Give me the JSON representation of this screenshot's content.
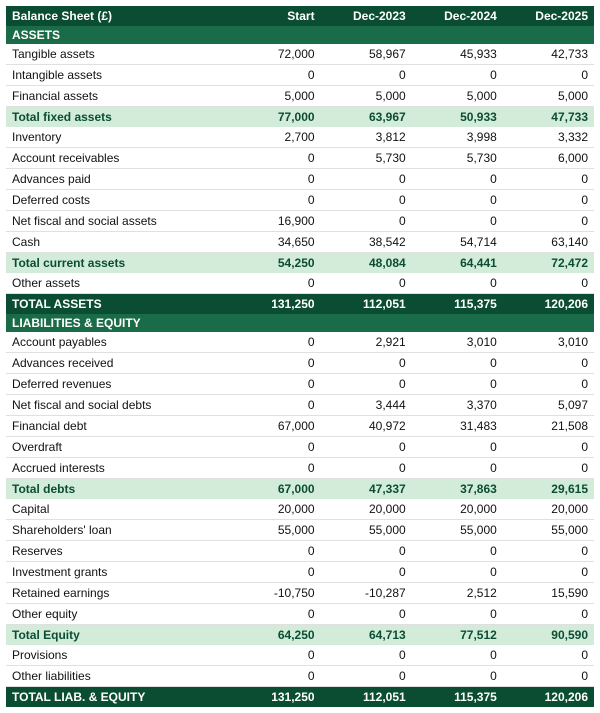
{
  "colors": {
    "header_bg": "#0b4d33",
    "header_fg": "#ffffff",
    "section_bg": "#1a6b47",
    "section_fg": "#ffffff",
    "data_bg": "#ffffff",
    "data_fg": "#111111",
    "subtotal_bg": "#d2ecd9",
    "subtotal_fg": "#0b4d33",
    "total_bg": "#0b4d33",
    "total_fg": "#ffffff",
    "row_border": "#e0e0e0"
  },
  "fontsize": 12,
  "header": {
    "title": "Balance Sheet (£)",
    "cols": [
      "Start",
      "Dec-2023",
      "Dec-2024",
      "Dec-2025"
    ]
  },
  "rows": [
    {
      "type": "section",
      "label": "ASSETS"
    },
    {
      "type": "data",
      "label": "Tangible assets",
      "v": [
        "72,000",
        "58,967",
        "45,933",
        "42,733"
      ]
    },
    {
      "type": "data",
      "label": "Intangible assets",
      "v": [
        "0",
        "0",
        "0",
        "0"
      ]
    },
    {
      "type": "data",
      "label": "Financial assets",
      "v": [
        "5,000",
        "5,000",
        "5,000",
        "5,000"
      ]
    },
    {
      "type": "subtotal",
      "label": "Total fixed assets",
      "v": [
        "77,000",
        "63,967",
        "50,933",
        "47,733"
      ]
    },
    {
      "type": "data",
      "label": "Inventory",
      "v": [
        "2,700",
        "3,812",
        "3,998",
        "3,332"
      ]
    },
    {
      "type": "data",
      "label": "Account receivables",
      "v": [
        "0",
        "5,730",
        "5,730",
        "6,000"
      ]
    },
    {
      "type": "data",
      "label": "Advances paid",
      "v": [
        "0",
        "0",
        "0",
        "0"
      ]
    },
    {
      "type": "data",
      "label": "Deferred costs",
      "v": [
        "0",
        "0",
        "0",
        "0"
      ]
    },
    {
      "type": "data",
      "label": "Net fiscal and social assets",
      "v": [
        "16,900",
        "0",
        "0",
        "0"
      ]
    },
    {
      "type": "data",
      "label": "Cash",
      "v": [
        "34,650",
        "38,542",
        "54,714",
        "63,140"
      ]
    },
    {
      "type": "subtotal",
      "label": "Total current assets",
      "v": [
        "54,250",
        "48,084",
        "64,441",
        "72,472"
      ]
    },
    {
      "type": "data",
      "label": "Other assets",
      "v": [
        "0",
        "0",
        "0",
        "0"
      ]
    },
    {
      "type": "total",
      "label": "TOTAL ASSETS",
      "v": [
        "131,250",
        "112,051",
        "115,375",
        "120,206"
      ]
    },
    {
      "type": "section",
      "label": "LIABILITIES & EQUITY"
    },
    {
      "type": "data",
      "label": "Account payables",
      "v": [
        "0",
        "2,921",
        "3,010",
        "3,010"
      ]
    },
    {
      "type": "data",
      "label": "Advances received",
      "v": [
        "0",
        "0",
        "0",
        "0"
      ]
    },
    {
      "type": "data",
      "label": "Deferred revenues",
      "v": [
        "0",
        "0",
        "0",
        "0"
      ]
    },
    {
      "type": "data",
      "label": "Net fiscal and social debts",
      "v": [
        "0",
        "3,444",
        "3,370",
        "5,097"
      ]
    },
    {
      "type": "data",
      "label": "Financial debt",
      "v": [
        "67,000",
        "40,972",
        "31,483",
        "21,508"
      ]
    },
    {
      "type": "data",
      "label": "Overdraft",
      "v": [
        "0",
        "0",
        "0",
        "0"
      ]
    },
    {
      "type": "data",
      "label": "Accrued interests",
      "v": [
        "0",
        "0",
        "0",
        "0"
      ]
    },
    {
      "type": "subtotal",
      "label": "Total debts",
      "v": [
        "67,000",
        "47,337",
        "37,863",
        "29,615"
      ]
    },
    {
      "type": "data",
      "label": "Capital",
      "v": [
        "20,000",
        "20,000",
        "20,000",
        "20,000"
      ]
    },
    {
      "type": "data",
      "label": "Shareholders' loan",
      "v": [
        "55,000",
        "55,000",
        "55,000",
        "55,000"
      ]
    },
    {
      "type": "data",
      "label": "Reserves",
      "v": [
        "0",
        "0",
        "0",
        "0"
      ]
    },
    {
      "type": "data",
      "label": "Investment grants",
      "v": [
        "0",
        "0",
        "0",
        "0"
      ]
    },
    {
      "type": "data",
      "label": "Retained earnings",
      "v": [
        "-10,750",
        "-10,287",
        "2,512",
        "15,590"
      ]
    },
    {
      "type": "data",
      "label": "Other equity",
      "v": [
        "0",
        "0",
        "0",
        "0"
      ]
    },
    {
      "type": "subtotal",
      "label": "Total Equity",
      "v": [
        "64,250",
        "64,713",
        "77,512",
        "90,590"
      ]
    },
    {
      "type": "data",
      "label": "Provisions",
      "v": [
        "0",
        "0",
        "0",
        "0"
      ]
    },
    {
      "type": "data",
      "label": "Other liabilities",
      "v": [
        "0",
        "0",
        "0",
        "0"
      ]
    },
    {
      "type": "total",
      "label": "TOTAL LIAB. & EQUITY",
      "v": [
        "131,250",
        "112,051",
        "115,375",
        "120,206"
      ]
    }
  ]
}
